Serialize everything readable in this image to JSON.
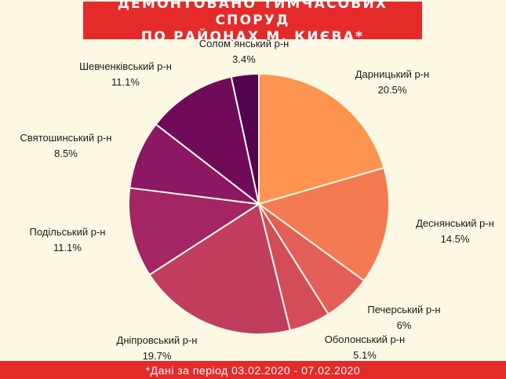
{
  "title": {
    "line1": "ДЕМОНТОВАНО ТИМЧАСОВИХ СПОРУД",
    "line2": "ПО РАЙОНАХ М. КИЄВА*"
  },
  "footnote": "*Дані за період 03.02.2020 - 07.02.2020",
  "colors": {
    "background": "#fdf8e4",
    "banner": "#e52a2a"
  },
  "chart_data": {
    "type": "pie",
    "title": "ДЕМОНТОВАНО ТИМЧАСОВИХ СПОРУД ПО РАЙОНАХ М. КИЄВА*",
    "start": "12 o'clock, clockwise",
    "slices": [
      {
        "name": "Дарницький р-н",
        "value": 20.5,
        "label": "20.5%",
        "color": "#ff9350"
      },
      {
        "name": "Деснянський р-н",
        "value": 14.5,
        "label": "14.5%",
        "color": "#f47a52"
      },
      {
        "name": "Печерський р-н",
        "value": 6,
        "label": "6%",
        "color": "#e35e57"
      },
      {
        "name": "Оболонський р-н",
        "value": 5.1,
        "label": "5.1%",
        "color": "#d24d58"
      },
      {
        "name": "Дніпровський р-н",
        "value": 19.7,
        "label": "19.7%",
        "color": "#c13d5d"
      },
      {
        "name": "Подільський р-н",
        "value": 11.1,
        "label": "11.1%",
        "color": "#a32563"
      },
      {
        "name": "Святошинський р-н",
        "value": 8.5,
        "label": "8.5%",
        "color": "#8c1763"
      },
      {
        "name": "Шевченківський р-н",
        "value": 11.1,
        "label": "11.1%",
        "color": "#700b5a"
      },
      {
        "name": "Солом`янський р-н",
        "value": 3.4,
        "label": "3.4%",
        "color": "#52044e"
      }
    ]
  }
}
